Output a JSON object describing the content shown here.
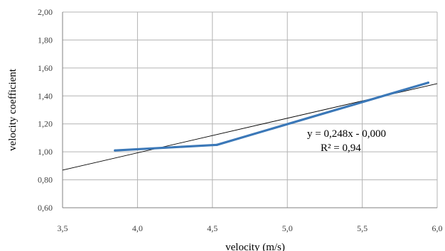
{
  "chart_data": {
    "type": "line",
    "title": "",
    "xlabel": "velocity (m/s)",
    "ylabel": "velocity coefficient",
    "xlim": [
      3.5,
      6.0
    ],
    "ylim": [
      0.6,
      2.0
    ],
    "x_ticks": [
      3.5,
      4.0,
      4.5,
      5.0,
      5.5,
      6.0
    ],
    "x_tick_labels": [
      "3,5",
      "4,0",
      "4,5",
      "5,0",
      "5,5",
      "6,0"
    ],
    "y_ticks": [
      0.6,
      0.8,
      1.0,
      1.2,
      1.4,
      1.6,
      1.8,
      2.0
    ],
    "y_tick_labels": [
      "0,60",
      "0,80",
      "1,00",
      "1,20",
      "1,40",
      "1,60",
      "1,80",
      "2,00"
    ],
    "grid": "vertical and horizontal",
    "legend": "none",
    "series": [
      {
        "x": [
          3.85,
          4.53,
          5.94
        ],
        "y": [
          1.01,
          1.05,
          1.495
        ],
        "color": "#3b78b8"
      }
    ],
    "trendline": {
      "x": [
        3.5,
        6.0
      ],
      "y": [
        0.869,
        1.488
      ],
      "color": "#000000"
    },
    "annotations": {
      "equation": "y = 0,248x - 0,000",
      "r_squared": "R² = 0,94"
    },
    "colors": {
      "grid": "#b3b3b3",
      "axis": "#808080"
    }
  }
}
